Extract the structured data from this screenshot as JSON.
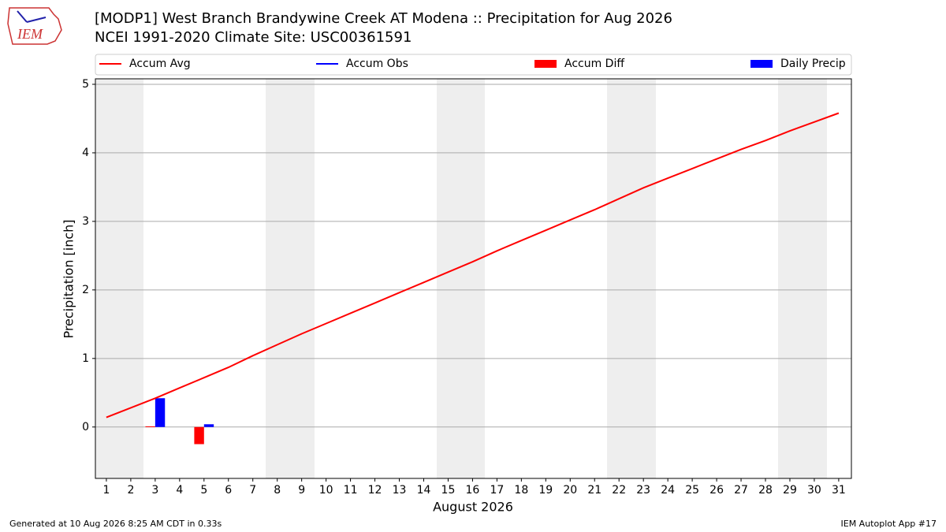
{
  "logo_text": "IEM",
  "footer_left": "Generated at 10 Aug 2026 8:25 AM CDT in 0.33s",
  "footer_right": "IEM Autoplot App #17",
  "chart_data": {
    "type": "line",
    "title": "[MODP1] West Branch Brandywine Creek  AT Modena :: Precipitation for Aug 2026",
    "subtitle": "NCEI 1991-2020 Climate Site: USC00361591",
    "x_label": "August 2026",
    "y_label": "Precipitation [inch]",
    "x": [
      1,
      2,
      3,
      4,
      5,
      6,
      7,
      8,
      9,
      10,
      11,
      12,
      13,
      14,
      15,
      16,
      17,
      18,
      19,
      20,
      21,
      22,
      23,
      24,
      25,
      26,
      27,
      28,
      29,
      30,
      31
    ],
    "series": [
      {
        "name": "Accum Avg",
        "color": "#ff0000",
        "values": [
          0.14,
          0.28,
          0.42,
          0.57,
          0.72,
          0.87,
          1.04,
          1.2,
          1.36,
          1.51,
          1.66,
          1.81,
          1.96,
          2.11,
          2.26,
          2.41,
          2.57,
          2.72,
          2.87,
          3.02,
          3.17,
          3.33,
          3.49,
          3.63,
          3.77,
          3.91,
          4.05,
          4.18,
          4.32,
          4.45,
          4.58
        ]
      },
      {
        "name": "Accum Obs",
        "color": "#0000ff",
        "values": [
          null,
          null,
          null,
          null,
          null,
          null,
          null,
          null,
          null,
          null,
          null,
          null,
          null,
          null,
          null,
          null,
          null,
          null,
          null,
          null,
          null,
          null,
          null,
          null,
          null,
          null,
          null,
          null,
          null,
          null,
          null
        ]
      }
    ],
    "bars": [
      {
        "name": "Accum Diff",
        "color": "#ff0000",
        "x": [
          3,
          5
        ],
        "values": [
          0.01,
          -0.25
        ]
      },
      {
        "name": "Daily Precip",
        "color": "#0000ff",
        "x": [
          3,
          5
        ],
        "values": [
          0.42,
          0.04
        ]
      }
    ],
    "xlim": [
      0.55,
      31.52
    ],
    "ylim": [
      -0.75,
      5.08
    ],
    "xticks": [
      1,
      2,
      3,
      4,
      5,
      6,
      7,
      8,
      9,
      10,
      11,
      12,
      13,
      14,
      15,
      16,
      17,
      18,
      19,
      20,
      21,
      22,
      23,
      24,
      25,
      26,
      27,
      28,
      29,
      30,
      31
    ],
    "yticks": [
      0,
      1,
      2,
      3,
      4,
      5
    ],
    "grid": true
  }
}
